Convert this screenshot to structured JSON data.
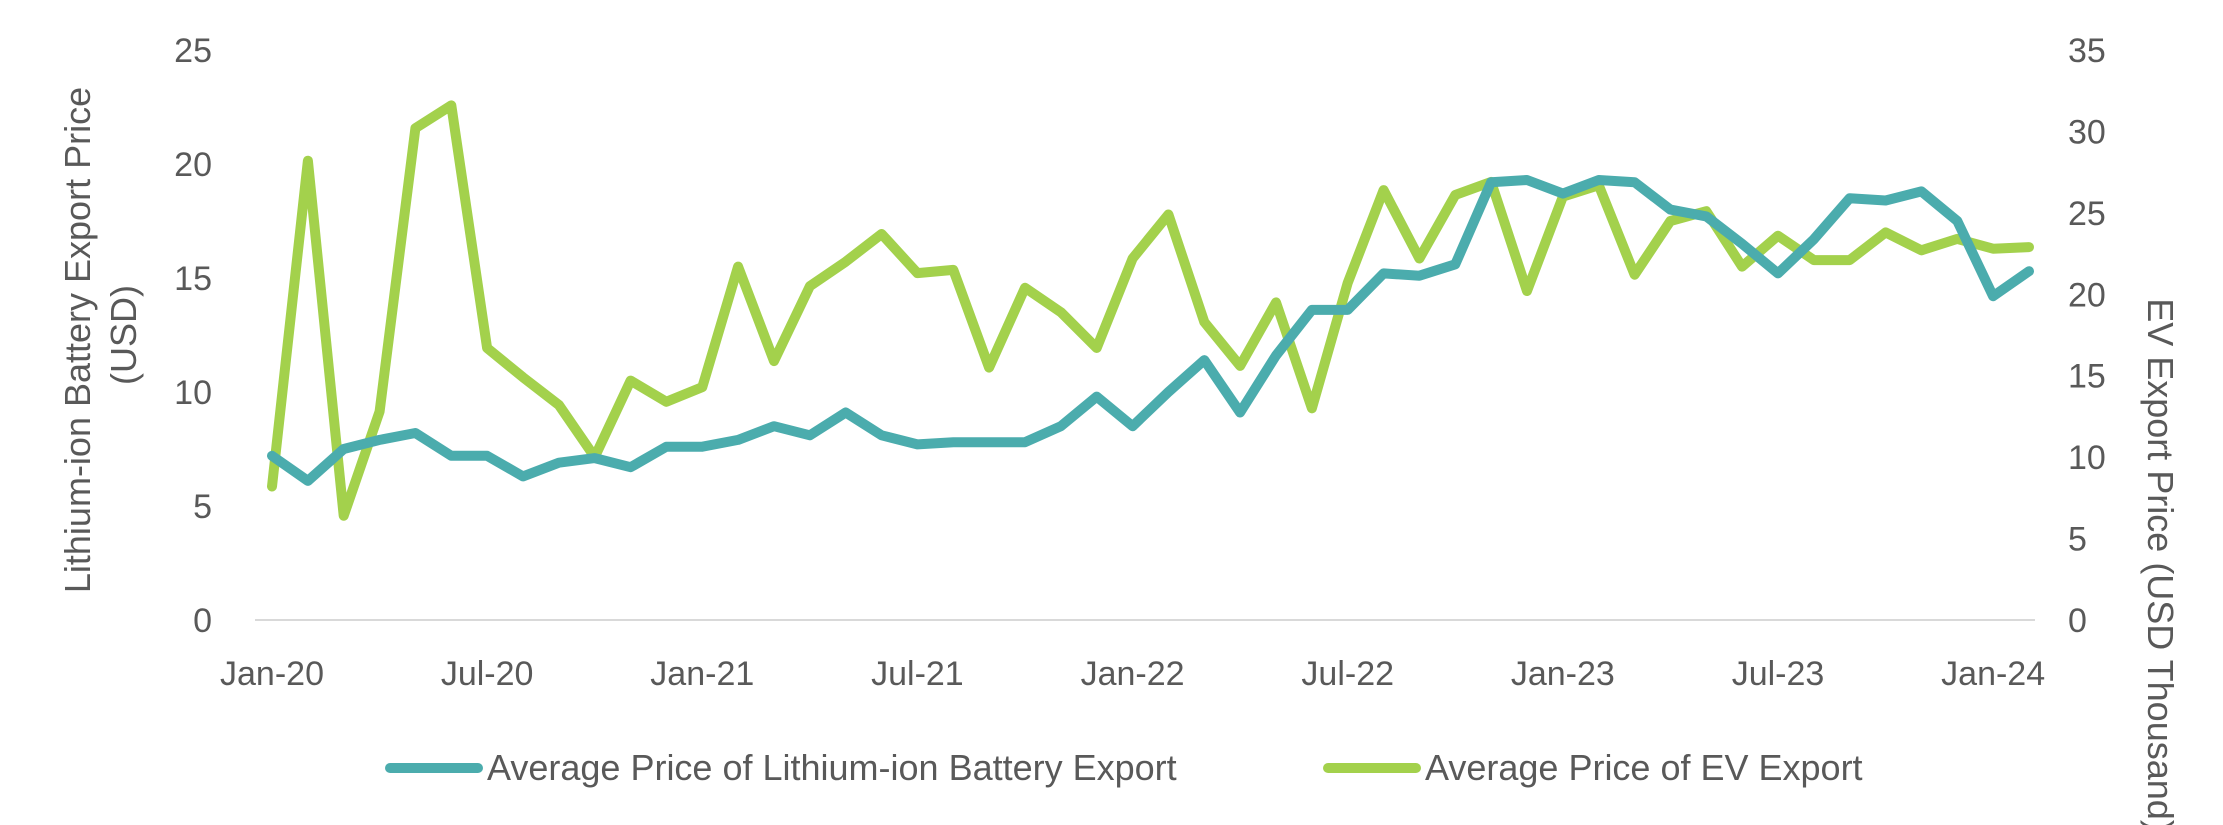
{
  "chart_data": {
    "type": "line",
    "x": [
      "Jan-20",
      "Feb-20",
      "Mar-20",
      "Apr-20",
      "May-20",
      "Jun-20",
      "Jul-20",
      "Aug-20",
      "Sep-20",
      "Oct-20",
      "Nov-20",
      "Dec-20",
      "Jan-21",
      "Feb-21",
      "Mar-21",
      "Apr-21",
      "May-21",
      "Jun-21",
      "Jul-21",
      "Aug-21",
      "Sep-21",
      "Oct-21",
      "Nov-21",
      "Dec-21",
      "Jan-22",
      "Feb-22",
      "Mar-22",
      "Apr-22",
      "May-22",
      "Jun-22",
      "Jul-22",
      "Aug-22",
      "Sep-22",
      "Oct-22",
      "Nov-22",
      "Dec-22",
      "Jan-23",
      "Feb-23",
      "Mar-23",
      "Apr-23",
      "May-23",
      "Jun-23",
      "Jul-23",
      "Aug-23",
      "Sep-23",
      "Oct-23",
      "Nov-23",
      "Dec-23",
      "Jan-24",
      "Feb-24"
    ],
    "x_tick_labels": [
      "Jan-20",
      "Jul-20",
      "Jan-21",
      "Jul-21",
      "Jan-22",
      "Jul-22",
      "Jan-23",
      "Jul-23",
      "Jan-24"
    ],
    "series": [
      {
        "name": "Average Price of Lithium-ion Battery Export",
        "axis": "left",
        "color": "#4bacad",
        "values": [
          7.2,
          6.1,
          7.5,
          7.9,
          8.2,
          7.2,
          7.2,
          6.3,
          6.9,
          7.1,
          6.7,
          7.6,
          7.6,
          7.9,
          8.5,
          8.1,
          9.1,
          8.1,
          7.7,
          7.8,
          7.8,
          7.8,
          8.5,
          9.8,
          8.5,
          10.0,
          11.4,
          9.1,
          11.6,
          13.6,
          13.6,
          15.2,
          15.1,
          15.6,
          19.2,
          19.3,
          18.7,
          19.3,
          19.2,
          18.0,
          17.7,
          16.5,
          15.2,
          16.7,
          18.5,
          18.4,
          18.8,
          17.5,
          14.2,
          15.3
        ]
      },
      {
        "name": "Average Price of EV Export",
        "axis": "right",
        "color": "#a3d14c",
        "values": [
          8.2,
          28.2,
          6.4,
          12.8,
          30.2,
          31.6,
          16.7,
          14.9,
          13.2,
          10.0,
          14.7,
          13.4,
          14.3,
          21.7,
          15.9,
          20.5,
          22.0,
          23.7,
          21.3,
          21.5,
          15.5,
          20.4,
          18.9,
          16.7,
          22.2,
          24.9,
          18.3,
          15.6,
          19.5,
          13.0,
          20.7,
          26.4,
          22.2,
          26.1,
          26.9,
          20.2,
          26.0,
          26.7,
          21.2,
          24.5,
          25.1,
          21.7,
          23.6,
          22.1,
          22.1,
          23.8,
          22.7,
          23.4,
          22.8,
          22.9
        ]
      }
    ],
    "y_left": {
      "label_line1": "Lithium-ion Battery Export Price",
      "label_line2": "(USD)",
      "ylim": [
        0,
        25
      ],
      "ticks": [
        0,
        5,
        10,
        15,
        20,
        25
      ]
    },
    "y_right": {
      "label": "EV Export Price (USD Thousand)",
      "ylim": [
        0,
        35
      ],
      "ticks": [
        0,
        5,
        10,
        15,
        20,
        25,
        30,
        35
      ]
    },
    "title": "",
    "grid": false,
    "legend_position": "bottom"
  }
}
